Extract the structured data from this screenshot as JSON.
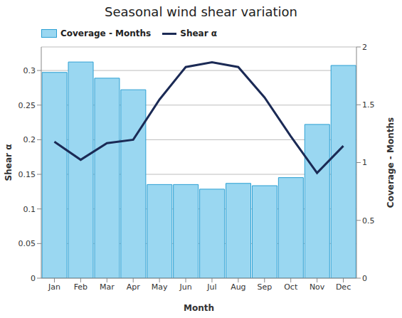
{
  "chart_data": {
    "type": "bar",
    "title": "Seasonal wind shear variation",
    "categories": [
      "Jan",
      "Feb",
      "Mar",
      "Apr",
      "May",
      "Jun",
      "Jul",
      "Aug",
      "Sep",
      "Oct",
      "Nov",
      "Dec"
    ],
    "x_label": "Month",
    "y_label": "Shear α",
    "y2_label": "Coverage - Months",
    "series": [
      {
        "name": "Coverage - Months",
        "type": "bar",
        "axis": "y2",
        "color": "#9ad7f1",
        "values": [
          1.78,
          1.87,
          1.73,
          1.63,
          0.81,
          0.81,
          0.77,
          0.82,
          0.8,
          0.87,
          1.33,
          1.84
        ]
      },
      {
        "name": "Shear α",
        "type": "line",
        "axis": "y",
        "color": "#1b2a55",
        "values": [
          0.197,
          0.171,
          0.195,
          0.2,
          0.258,
          0.305,
          0.312,
          0.305,
          0.261,
          0.205,
          0.152,
          0.191
        ]
      }
    ],
    "ylim": [
      0,
      0.334
    ],
    "yticks": [
      0,
      0.05,
      0.1,
      0.15,
      0.2,
      0.25,
      0.3
    ],
    "y2lim": [
      0,
      2
    ],
    "y2ticks": [
      0,
      0.5,
      1,
      1.5,
      2
    ],
    "grid": true,
    "legend": "top left"
  }
}
